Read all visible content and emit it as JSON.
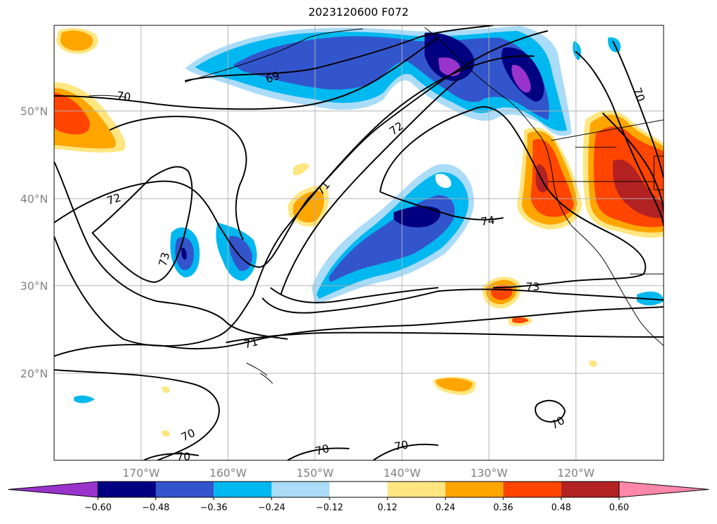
{
  "title": "2023120600 F072",
  "map": {
    "lat_labels": [
      "50°N",
      "40°N",
      "30°N",
      "20°N"
    ],
    "lon_labels": [
      "170°W",
      "160°W",
      "150°W",
      "140°W",
      "130°W",
      "120°W"
    ],
    "contour_labels": [
      "69",
      "70",
      "70",
      "72",
      "72",
      "71",
      "73",
      "74",
      "73",
      "71",
      "70",
      "70",
      "70",
      "70",
      "70"
    ]
  },
  "colorbar": {
    "ticks": [
      "−0.60",
      "−0.48",
      "−0.36",
      "−0.24",
      "−0.12",
      "0.12",
      "0.24",
      "0.36",
      "0.48",
      "0.60"
    ],
    "colors": [
      "#9933cc",
      "#000080",
      "#3355cc",
      "#00b8f0",
      "#aadcf8",
      "#ffffff",
      "#ffe680",
      "#ffa500",
      "#ff4500",
      "#b22222",
      "#ff88aa",
      "#ff88aa"
    ],
    "extend_left_color": "#9933cc",
    "extend_right_color": "#ff88aa"
  },
  "palette": {
    "purple": "#9933cc",
    "navy": "#000080",
    "blue": "#3355cc",
    "cyan": "#00b8f0",
    "lightblue": "#aadcf8",
    "lightyellow": "#ffe680",
    "orange": "#ffa500",
    "redorange": "#ff4500",
    "darkred": "#b22222"
  }
}
